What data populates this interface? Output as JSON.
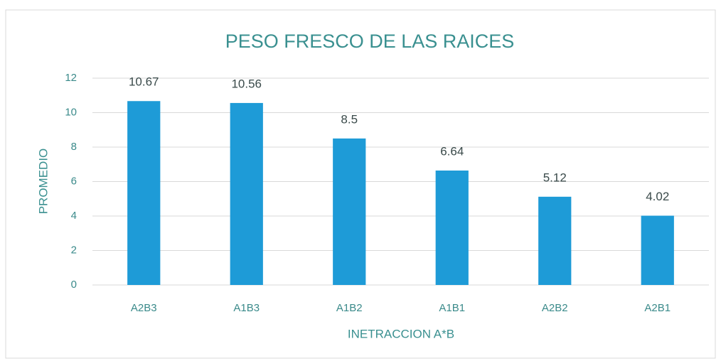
{
  "chart_data": {
    "type": "bar",
    "title": "PESO FRESCO DE LAS RAICES",
    "x_label": "INETRACCION A*B",
    "y_label": "PROMEDIO",
    "categories": [
      "A2B3",
      "A1B3",
      "A1B2",
      "A1B1",
      "A2B2",
      "A2B1"
    ],
    "values": [
      10.67,
      10.56,
      8.5,
      6.64,
      5.12,
      4.02
    ],
    "color": "#1e9bd7",
    "ylim": [
      0,
      12
    ],
    "yticks": [
      0,
      2,
      4,
      6,
      8,
      10,
      12
    ],
    "grid": true
  }
}
